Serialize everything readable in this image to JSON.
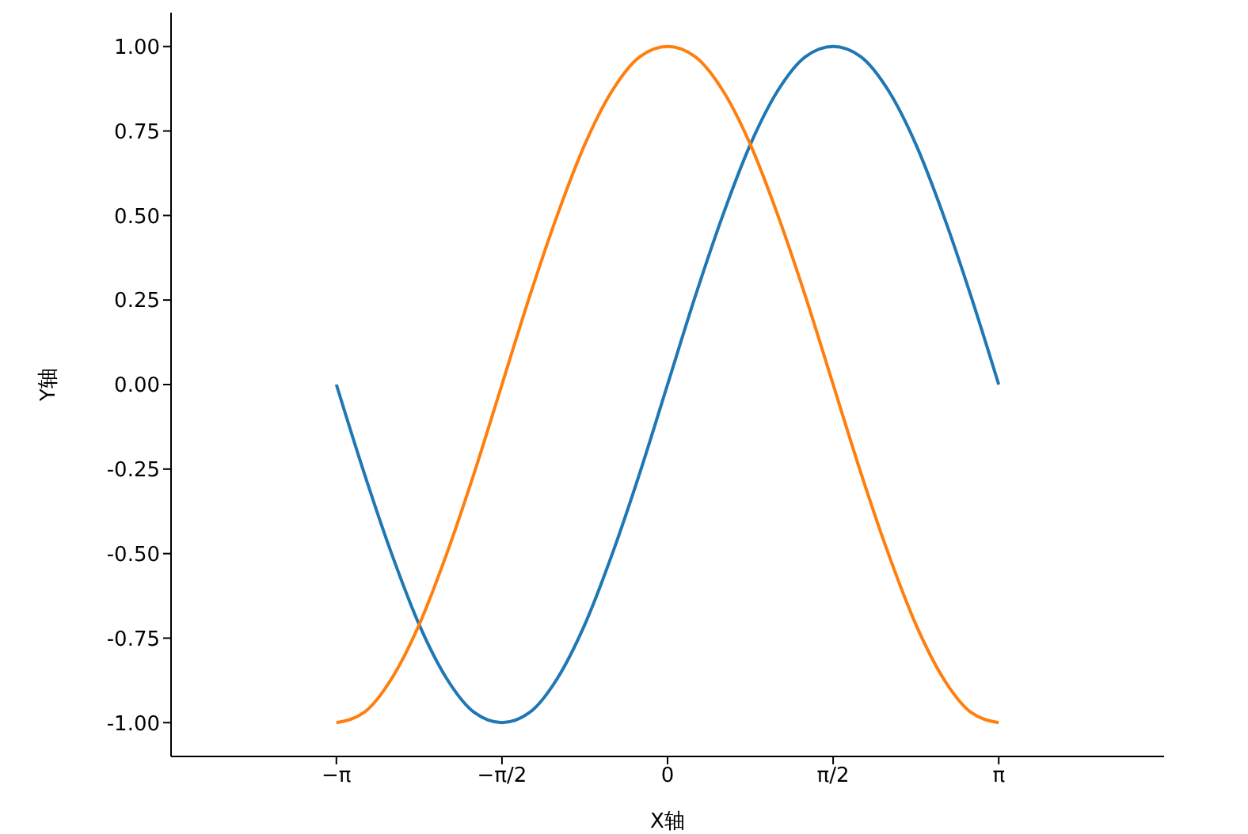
{
  "chart_data": {
    "type": "line",
    "xlabel": "X轴",
    "ylabel": "Y轴",
    "x": [
      -3.1416,
      -2.8798,
      -2.618,
      -2.3562,
      -2.0944,
      -1.8326,
      -1.5708,
      -1.309,
      -1.0472,
      -0.7854,
      -0.5236,
      -0.2618,
      0,
      0.2618,
      0.5236,
      0.7854,
      1.0472,
      1.309,
      1.5708,
      1.8326,
      2.0944,
      2.3562,
      2.618,
      2.8798,
      3.1416
    ],
    "series": [
      {
        "color": "#1f77b4",
        "values": [
          0,
          -0.26,
          -0.5,
          -0.71,
          -0.87,
          -0.97,
          -1,
          -0.97,
          -0.87,
          -0.71,
          -0.5,
          -0.26,
          0,
          0.26,
          0.5,
          0.71,
          0.87,
          0.97,
          1,
          0.97,
          0.87,
          0.71,
          0.5,
          0.26,
          0
        ]
      },
      {
        "color": "#ff7f0e",
        "values": [
          -1,
          -0.97,
          -0.87,
          -0.71,
          -0.5,
          -0.26,
          0,
          0.26,
          0.5,
          0.71,
          0.87,
          0.97,
          1,
          0.97,
          0.87,
          0.71,
          0.5,
          0.26,
          0,
          -0.26,
          -0.5,
          -0.71,
          -0.87,
          -0.97,
          -1
        ]
      }
    ],
    "xlim": [
      -4.71,
      4.71
    ],
    "xticks": [
      {
        "value": -3.1416,
        "label": "−π"
      },
      {
        "value": -1.5708,
        "label": "−π/2"
      },
      {
        "value": 0,
        "label": "0"
      },
      {
        "value": 1.5708,
        "label": "π/2"
      },
      {
        "value": 3.1416,
        "label": "π"
      }
    ],
    "ylim": [
      -1.1,
      1.1
    ],
    "yticks": [
      {
        "value": -1,
        "label": "-1.00"
      },
      {
        "value": -0.75,
        "label": "-0.75"
      },
      {
        "value": -0.5,
        "label": "-0.50"
      },
      {
        "value": -0.25,
        "label": "-0.25"
      },
      {
        "value": 0,
        "label": "0.00"
      },
      {
        "value": 0.25,
        "label": "0.25"
      },
      {
        "value": 0.5,
        "label": "0.50"
      },
      {
        "value": 0.75,
        "label": "0.75"
      },
      {
        "value": 1,
        "label": "1.00"
      }
    ],
    "grid": false,
    "legend": false,
    "marker": "none",
    "line_style": "solid"
  }
}
